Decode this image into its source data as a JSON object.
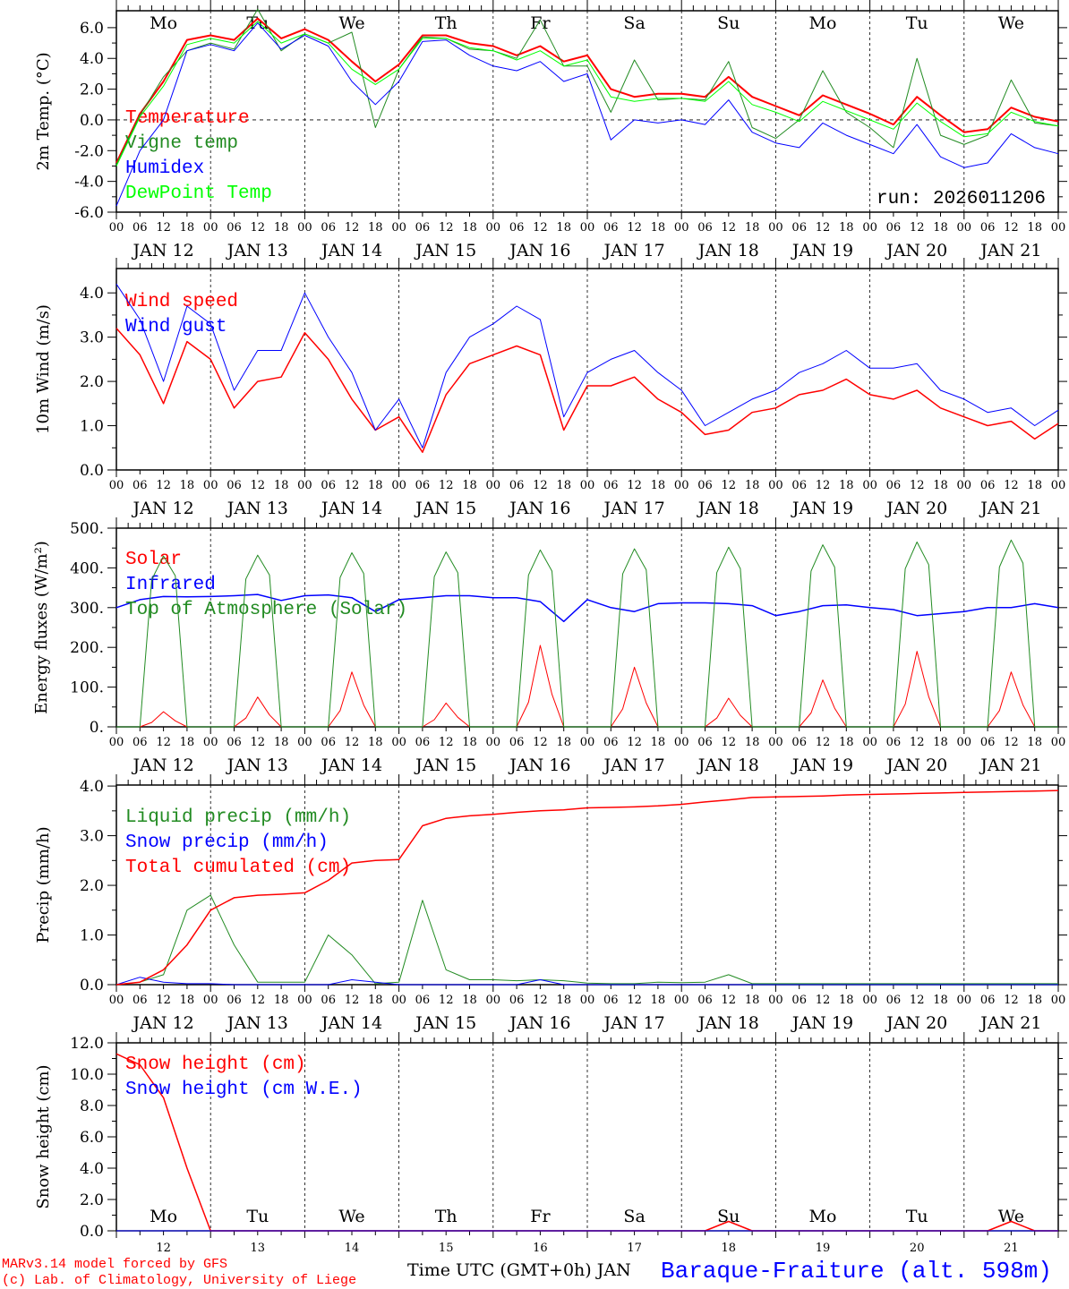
{
  "colors": {
    "temperature": "#ff0000",
    "vigne": "#228b22",
    "humidex": "#0000ff",
    "dewpoint": "#00ff00",
    "weekend": "#ff0000",
    "title": "#0000ff"
  },
  "days": {
    "dow": [
      "Mo",
      "Tu",
      "We",
      "Th",
      "Fr",
      "Sa",
      "Su",
      "Mo",
      "Tu",
      "We"
    ],
    "weekend": [
      false,
      false,
      false,
      false,
      false,
      true,
      true,
      false,
      false,
      false
    ],
    "dates": [
      "JAN 12",
      "JAN 13",
      "JAN 14",
      "JAN 15",
      "JAN 16",
      "JAN 17",
      "JAN 18",
      "JAN 19",
      "JAN 20",
      "JAN 21"
    ],
    "short": [
      "12",
      "13",
      "14",
      "15",
      "16",
      "17",
      "18",
      "19",
      "20",
      "21"
    ],
    "hours": [
      "00",
      "06",
      "12",
      "18"
    ],
    "end_hour": "00"
  },
  "chart_data": [
    {
      "type": "line",
      "ylabel": "2m Temp. (°C)",
      "ylim": [
        -6,
        7.1
      ],
      "yticks": [
        "6.0",
        "4.0",
        "2.0",
        "0.0",
        "-2.0",
        "-4.0",
        "-6.0"
      ],
      "ytick_values": [
        6,
        4,
        2,
        0,
        -2,
        -4,
        -6
      ],
      "x_step_hours": 6,
      "annotation": "run: 2026011206",
      "series": [
        {
          "name": "Temperature",
          "color": "#ff0000",
          "width": 2,
          "values": [
            -2.8,
            0.4,
            2.5,
            5.2,
            5.5,
            5.2,
            6.6,
            5.3,
            5.9,
            5.2,
            3.8,
            2.5,
            3.6,
            5.5,
            5.5,
            5.0,
            4.8,
            4.2,
            4.8,
            3.8,
            4.2,
            2.0,
            1.5,
            1.7,
            1.7,
            1.5,
            2.8,
            1.5,
            0.9,
            0.3,
            1.6,
            1.0,
            0.4,
            -0.3,
            1.5,
            0.3,
            -0.8,
            -0.6,
            0.8,
            0.2,
            -0.1
          ]
        },
        {
          "name": "Vigne temp",
          "color": "#228b22",
          "width": 1,
          "values": [
            -2.9,
            0.3,
            2.8,
            4.5,
            5.0,
            4.6,
            7.2,
            4.5,
            5.6,
            5.0,
            5.7,
            -0.5,
            3.3,
            5.4,
            5.3,
            4.6,
            4.5,
            4.0,
            6.5,
            3.5,
            3.5,
            0.5,
            3.9,
            1.3,
            1.4,
            1.3,
            3.8,
            -0.5,
            -1.2,
            0.0,
            3.2,
            0.5,
            -0.5,
            -1.8,
            4.0,
            -1.0,
            -1.6,
            -1.0,
            2.6,
            -0.2,
            -0.4
          ]
        },
        {
          "name": "Humidex",
          "color": "#0000ff",
          "width": 1,
          "values": [
            -5.6,
            -2.0,
            0.0,
            4.5,
            4.9,
            4.5,
            6.3,
            4.6,
            5.5,
            4.8,
            2.5,
            1.0,
            2.5,
            5.1,
            5.2,
            4.2,
            3.5,
            3.2,
            3.8,
            2.5,
            3.0,
            -1.3,
            0.0,
            -0.2,
            0.0,
            -0.3,
            1.3,
            -0.8,
            -1.5,
            -1.8,
            -0.2,
            -1.0,
            -1.6,
            -2.2,
            -0.3,
            -2.4,
            -3.1,
            -2.8,
            -0.9,
            -1.8,
            -2.2
          ]
        },
        {
          "name": "DewPoint Temp",
          "color": "#00ff00",
          "width": 1,
          "values": [
            -3.0,
            0.2,
            2.2,
            4.9,
            5.3,
            5.0,
            6.4,
            5.0,
            5.6,
            5.0,
            3.3,
            2.3,
            3.3,
            5.3,
            5.3,
            4.7,
            4.5,
            3.9,
            4.5,
            3.5,
            3.9,
            1.5,
            1.2,
            1.4,
            1.4,
            1.2,
            2.5,
            1.0,
            0.5,
            -0.1,
            1.2,
            0.6,
            0.0,
            -0.6,
            1.1,
            -0.1,
            -1.1,
            -0.9,
            0.5,
            -0.1,
            -0.4
          ]
        }
      ]
    },
    {
      "type": "line",
      "ylabel": "10m Wind (m/s)",
      "ylim": [
        0,
        4.55
      ],
      "yticks": [
        "4.0",
        "3.0",
        "2.0",
        "1.0",
        "0.0"
      ],
      "ytick_values": [
        4,
        3,
        2,
        1,
        0
      ],
      "x_step_hours": 6,
      "series": [
        {
          "name": "Wind speed",
          "color": "#ff0000",
          "width": 1.5,
          "values": [
            3.2,
            2.6,
            1.5,
            2.9,
            2.5,
            1.4,
            2.0,
            2.1,
            3.1,
            2.5,
            1.6,
            0.9,
            1.2,
            0.4,
            1.7,
            2.4,
            2.6,
            2.8,
            2.6,
            0.9,
            1.9,
            1.9,
            2.1,
            1.6,
            1.3,
            0.8,
            0.9,
            1.3,
            1.4,
            1.7,
            1.8,
            2.05,
            1.7,
            1.6,
            1.8,
            1.4,
            1.2,
            1.0,
            1.1,
            0.7,
            1.05
          ]
        },
        {
          "name": "Wind gust",
          "color": "#0000ff",
          "width": 1,
          "values": [
            4.2,
            3.4,
            2.0,
            3.7,
            3.3,
            1.8,
            2.7,
            2.7,
            4.0,
            3.0,
            2.2,
            0.9,
            1.6,
            0.5,
            2.2,
            3.0,
            3.3,
            3.7,
            3.4,
            1.2,
            2.2,
            2.5,
            2.7,
            2.2,
            1.8,
            1.0,
            1.3,
            1.6,
            1.8,
            2.2,
            2.4,
            2.7,
            2.3,
            2.3,
            2.4,
            1.8,
            1.6,
            1.3,
            1.4,
            1.0,
            1.35
          ]
        }
      ]
    },
    {
      "type": "line",
      "ylabel": "Energy fluxes (W/m²)",
      "ylim": [
        0,
        500
      ],
      "yticks": [
        "500.",
        "400.",
        "300.",
        "200.",
        "100.",
        "0."
      ],
      "ytick_values": [
        500,
        400,
        300,
        200,
        100,
        0
      ],
      "x_step_hours": 3,
      "series": [
        {
          "name": "Solar",
          "color": "#ff0000",
          "width": 1,
          "values": [
            0,
            0,
            0,
            11,
            38,
            15,
            0,
            0,
            0,
            0,
            0,
            22,
            75,
            30,
            0,
            0,
            0,
            0,
            0,
            41,
            138,
            55,
            0,
            0,
            0,
            0,
            0,
            18,
            60,
            24,
            0,
            0,
            0,
            0,
            0,
            62,
            205,
            82,
            0,
            0,
            0,
            0,
            0,
            45,
            150,
            60,
            0,
            0,
            0,
            0,
            0,
            22,
            72,
            29,
            0,
            0,
            0,
            0,
            0,
            35,
            118,
            47,
            0,
            0,
            0,
            0,
            0,
            57,
            190,
            76,
            0,
            0,
            0,
            0,
            0,
            41,
            138,
            55,
            0,
            0,
            0
          ]
        },
        {
          "name": "Infrared",
          "color": "#0000ff",
          "width": 1.5,
          "x_step_hours": 6,
          "values": [
            300,
            320,
            328,
            327,
            328,
            330,
            333,
            318,
            330,
            332,
            325,
            290,
            320,
            325,
            330,
            330,
            325,
            325,
            315,
            265,
            320,
            300,
            290,
            310,
            312,
            312,
            310,
            305,
            280,
            290,
            305,
            307,
            300,
            295,
            280,
            285,
            290,
            300,
            300,
            310,
            300
          ]
        },
        {
          "name": "Top of Atmosphere (Solar)",
          "color": "#228b22",
          "width": 1,
          "values": [
            0,
            0,
            0,
            370,
            430,
            380,
            0,
            0,
            0,
            0,
            0,
            372,
            432,
            382,
            0,
            0,
            0,
            0,
            0,
            376,
            438,
            386,
            0,
            0,
            0,
            0,
            0,
            378,
            440,
            388,
            0,
            0,
            0,
            0,
            0,
            382,
            445,
            392,
            0,
            0,
            0,
            0,
            0,
            385,
            448,
            395,
            0,
            0,
            0,
            0,
            0,
            388,
            452,
            398,
            0,
            0,
            0,
            0,
            0,
            392,
            458,
            402,
            0,
            0,
            0,
            0,
            0,
            398,
            465,
            408,
            0,
            0,
            0,
            0,
            0,
            402,
            470,
            412,
            0,
            0,
            0
          ]
        }
      ]
    },
    {
      "type": "line",
      "ylabel": "Precip (mm/h)",
      "ylim": [
        0,
        4.02
      ],
      "yticks": [
        "4.0",
        "3.0",
        "2.0",
        "1.0",
        "0.0"
      ],
      "ytick_values": [
        4,
        3,
        2,
        1,
        0
      ],
      "x_step_hours": 6,
      "series": [
        {
          "name": "Liquid precip (mm/h)",
          "color": "#228b22",
          "width": 1,
          "values": [
            0,
            0.05,
            0.2,
            1.5,
            1.8,
            0.8,
            0.05,
            0.05,
            0.05,
            1.0,
            0.6,
            0.02,
            0.05,
            1.7,
            0.3,
            0.1,
            0.1,
            0.08,
            0.1,
            0.08,
            0.03,
            0.02,
            0.02,
            0.05,
            0.04,
            0.05,
            0.2,
            0.02,
            0.02,
            0.02,
            0.02,
            0.02,
            0.02,
            0.02,
            0.02,
            0.02,
            0.02,
            0.02,
            0.02,
            0.02,
            0.02
          ]
        },
        {
          "name": "Snow precip (mm/h)",
          "color": "#0000ff",
          "width": 1,
          "values": [
            0,
            0.15,
            0.05,
            0.02,
            0.02,
            0,
            0,
            0,
            0,
            0,
            0.1,
            0.05,
            0,
            0,
            0,
            0,
            0,
            0,
            0.1,
            0,
            0,
            0,
            0,
            0,
            0,
            0,
            0,
            0,
            0,
            0,
            0,
            0,
            0,
            0,
            0,
            0,
            0,
            0,
            0,
            0,
            0
          ]
        },
        {
          "name": "Total cumulated (cm)",
          "color": "#ff0000",
          "width": 1.5,
          "values": [
            0,
            0.05,
            0.3,
            0.8,
            1.5,
            1.75,
            1.8,
            1.82,
            1.85,
            2.1,
            2.45,
            2.5,
            2.52,
            3.2,
            3.35,
            3.4,
            3.43,
            3.47,
            3.5,
            3.52,
            3.56,
            3.57,
            3.58,
            3.6,
            3.63,
            3.68,
            3.72,
            3.77,
            3.78,
            3.79,
            3.8,
            3.82,
            3.83,
            3.84,
            3.85,
            3.86,
            3.87,
            3.88,
            3.89,
            3.9,
            3.91
          ]
        }
      ]
    },
    {
      "type": "line",
      "ylabel": "Snow height (cm)",
      "ylim": [
        0,
        12
      ],
      "yticks": [
        "12.0",
        "10.0",
        "8.0",
        "6.0",
        "4.0",
        "2.0",
        "0.0"
      ],
      "ytick_values": [
        12,
        10,
        8,
        6,
        4,
        2,
        0
      ],
      "x_step_hours": 6,
      "series": [
        {
          "name": "Snow height (cm)",
          "color": "#ff0000",
          "width": 1.5,
          "values": [
            11.3,
            10.6,
            8.5,
            4.0,
            0,
            0,
            0,
            0,
            0,
            0,
            0,
            0,
            0,
            0,
            0,
            0,
            0,
            0,
            0,
            0,
            0,
            0,
            0,
            0,
            0,
            0,
            0.6,
            0,
            0,
            0,
            0,
            0,
            0,
            0,
            0,
            0,
            0,
            0,
            0.6,
            0,
            0
          ]
        },
        {
          "name": "Snow height (cm W.E.)",
          "color": "#0000ff",
          "width": 1,
          "values": [
            0,
            0,
            0,
            0,
            0,
            0,
            0,
            0,
            0,
            0,
            0,
            0,
            0,
            0,
            0,
            0,
            0,
            0,
            0,
            0,
            0,
            0,
            0,
            0,
            0,
            0,
            0,
            0,
            0,
            0,
            0,
            0,
            0,
            0,
            0,
            0,
            0,
            0,
            0,
            0,
            0
          ]
        }
      ]
    }
  ],
  "footer": {
    "model": "MARv3.14 model forced by GFS",
    "credit": "(c) Lab. of Climatology, University of Liege",
    "xlabel": "Time UTC (GMT+0h) JAN",
    "station": "Baraque-Fraiture (alt. 598m)"
  }
}
